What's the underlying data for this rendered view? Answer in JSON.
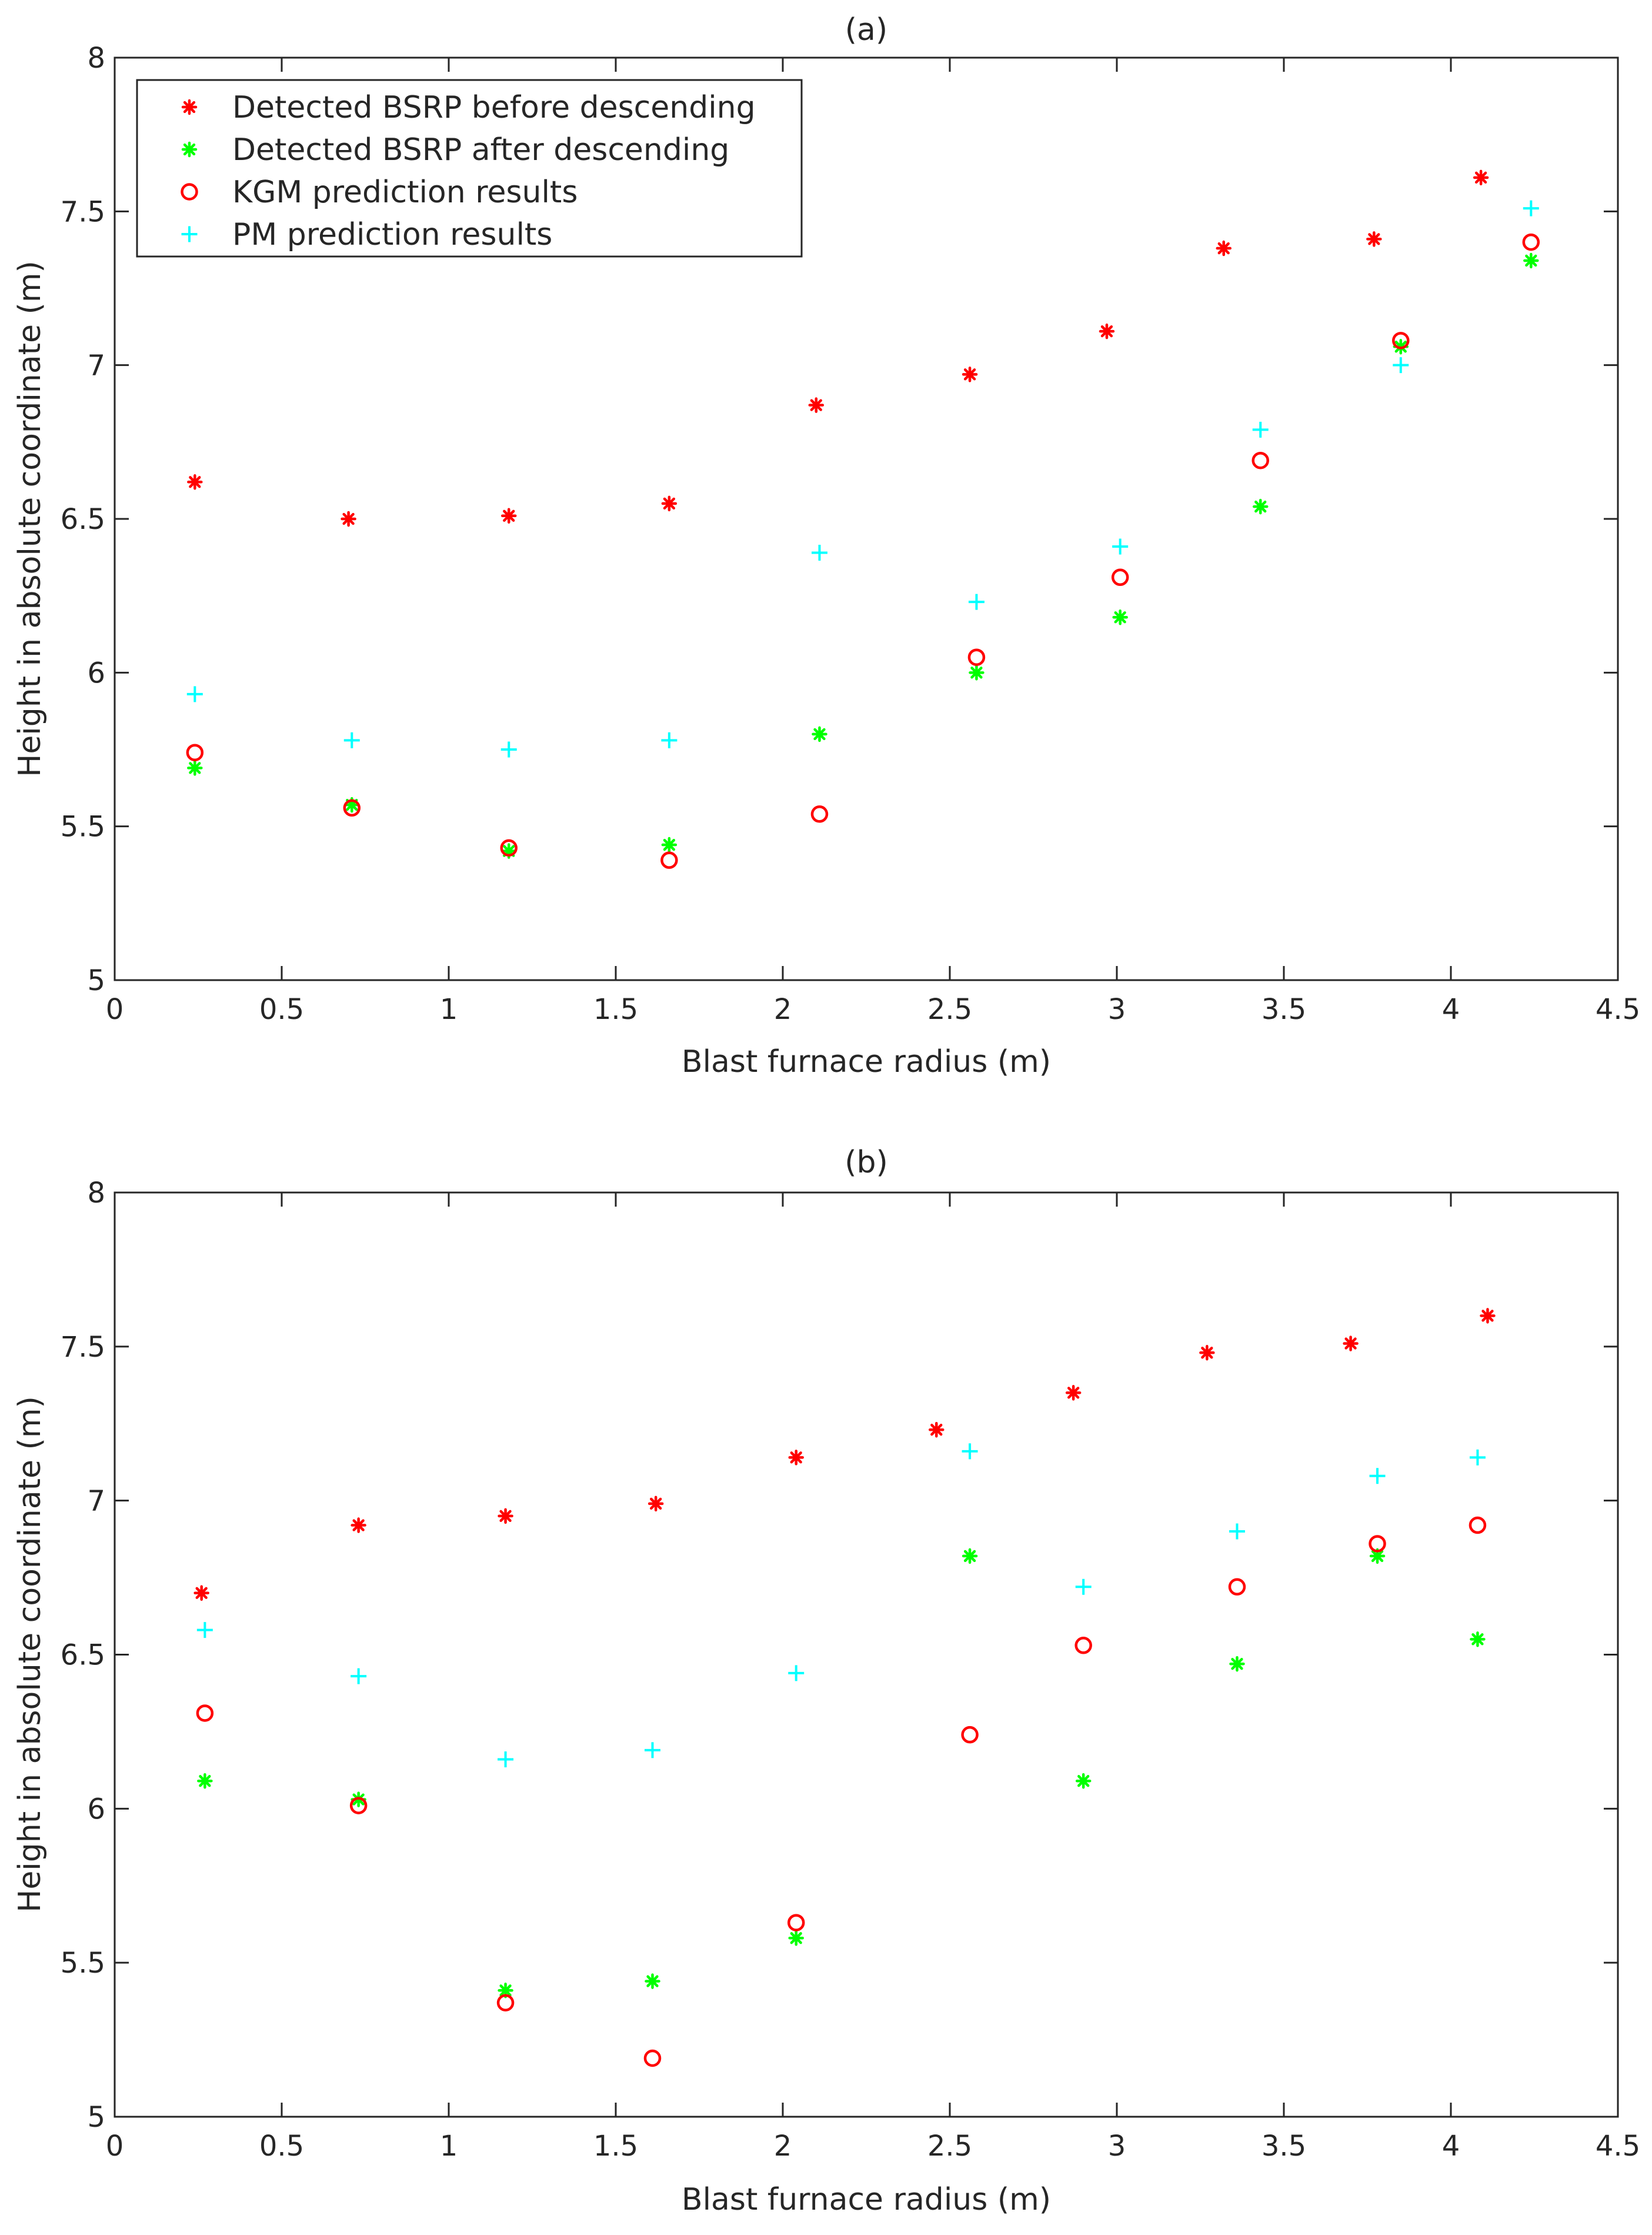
{
  "chart_data": [
    {
      "type": "scatter",
      "title": "(a)",
      "xlabel": "Blast furnace radius (m)",
      "ylabel": "Height in absolute coordinate (m)",
      "xlim": [
        0,
        4.5
      ],
      "ylim": [
        5,
        8
      ],
      "xticks": [
        0,
        0.5,
        1,
        1.5,
        2,
        2.5,
        3,
        3.5,
        4,
        4.5
      ],
      "xtick_labels": [
        "0",
        "0.5",
        "1",
        "1.5",
        "2",
        "2.5",
        "3",
        "3.5",
        "4",
        "4.5"
      ],
      "yticks": [
        5,
        5.5,
        6,
        6.5,
        7,
        7.5,
        8
      ],
      "ytick_labels": [
        "5",
        "5.5",
        "6",
        "6.5",
        "7",
        "7.5",
        "8"
      ],
      "legend": "top-left",
      "series": [
        {
          "name": "Detected BSRP before descending",
          "marker": "asterisk",
          "color": "#ff0000",
          "x": [
            0.24,
            0.7,
            1.18,
            1.66,
            2.1,
            2.56,
            2.97,
            3.32,
            3.77,
            4.09
          ],
          "y": [
            6.62,
            6.5,
            6.51,
            6.55,
            6.87,
            6.97,
            7.11,
            7.38,
            7.41,
            7.61
          ]
        },
        {
          "name": "Detected BSRP after descending",
          "marker": "asterisk",
          "color": "#00ff00",
          "x": [
            0.24,
            0.71,
            1.18,
            1.66,
            2.11,
            2.58,
            3.01,
            3.43,
            3.85,
            4.24
          ],
          "y": [
            5.69,
            5.57,
            5.42,
            5.44,
            5.8,
            6.0,
            6.18,
            6.54,
            7.06,
            7.34
          ]
        },
        {
          "name": "KGM prediction results",
          "marker": "circle",
          "color": "#ff0000",
          "x": [
            0.24,
            0.71,
            1.18,
            1.66,
            2.11,
            2.58,
            3.01,
            3.43,
            3.85,
            4.24
          ],
          "y": [
            5.74,
            5.56,
            5.43,
            5.39,
            5.54,
            6.05,
            6.31,
            6.69,
            7.08,
            7.4
          ]
        },
        {
          "name": "PM prediction results",
          "marker": "plus",
          "color": "#00ffff",
          "x": [
            0.24,
            0.71,
            1.18,
            1.66,
            2.11,
            2.58,
            3.01,
            3.43,
            3.85,
            4.24
          ],
          "y": [
            5.93,
            5.78,
            5.75,
            5.78,
            6.39,
            6.23,
            6.41,
            6.79,
            7.0,
            7.51
          ]
        }
      ]
    },
    {
      "type": "scatter",
      "title": "(b)",
      "xlabel": "Blast furnace radius (m)",
      "ylabel": "Height in absolute coordinate (m)",
      "xlim": [
        0,
        4.5
      ],
      "ylim": [
        5,
        8
      ],
      "xticks": [
        0,
        0.5,
        1,
        1.5,
        2,
        2.5,
        3,
        3.5,
        4,
        4.5
      ],
      "xtick_labels": [
        "0",
        "0.5",
        "1",
        "1.5",
        "2",
        "2.5",
        "3",
        "3.5",
        "4",
        "4.5"
      ],
      "yticks": [
        5,
        5.5,
        6,
        6.5,
        7,
        7.5,
        8
      ],
      "ytick_labels": [
        "5",
        "5.5",
        "6",
        "6.5",
        "7",
        "7.5",
        "8"
      ],
      "legend": "none",
      "series": [
        {
          "name": "Detected BSRP before descending",
          "marker": "asterisk",
          "color": "#ff0000",
          "x": [
            0.26,
            0.73,
            1.17,
            1.62,
            2.04,
            2.46,
            2.87,
            3.27,
            3.7,
            4.11
          ],
          "y": [
            6.7,
            6.92,
            6.95,
            6.99,
            7.14,
            7.23,
            7.35,
            7.48,
            7.51,
            7.6
          ]
        },
        {
          "name": "Detected BSRP after descending",
          "marker": "asterisk",
          "color": "#00ff00",
          "x": [
            0.27,
            0.73,
            1.17,
            1.61,
            2.04,
            2.56,
            2.9,
            3.36,
            3.78,
            4.08
          ],
          "y": [
            6.09,
            6.03,
            5.41,
            5.44,
            5.58,
            6.82,
            6.09,
            6.47,
            6.82,
            6.55
          ]
        },
        {
          "name": "KGM prediction results",
          "marker": "circle",
          "color": "#ff0000",
          "x": [
            0.27,
            0.73,
            1.17,
            1.61,
            2.04,
            2.56,
            2.9,
            3.36,
            3.78,
            4.08
          ],
          "y": [
            6.31,
            6.01,
            5.37,
            5.19,
            5.63,
            6.24,
            6.53,
            6.72,
            6.86,
            6.92
          ]
        },
        {
          "name": "PM prediction results",
          "marker": "plus",
          "color": "#00ffff",
          "x": [
            0.27,
            0.73,
            1.17,
            1.61,
            2.04,
            2.56,
            2.9,
            3.36,
            3.78,
            4.08
          ],
          "y": [
            6.58,
            6.43,
            6.16,
            6.19,
            6.44,
            7.16,
            6.72,
            6.9,
            7.08,
            7.14
          ]
        }
      ]
    }
  ]
}
